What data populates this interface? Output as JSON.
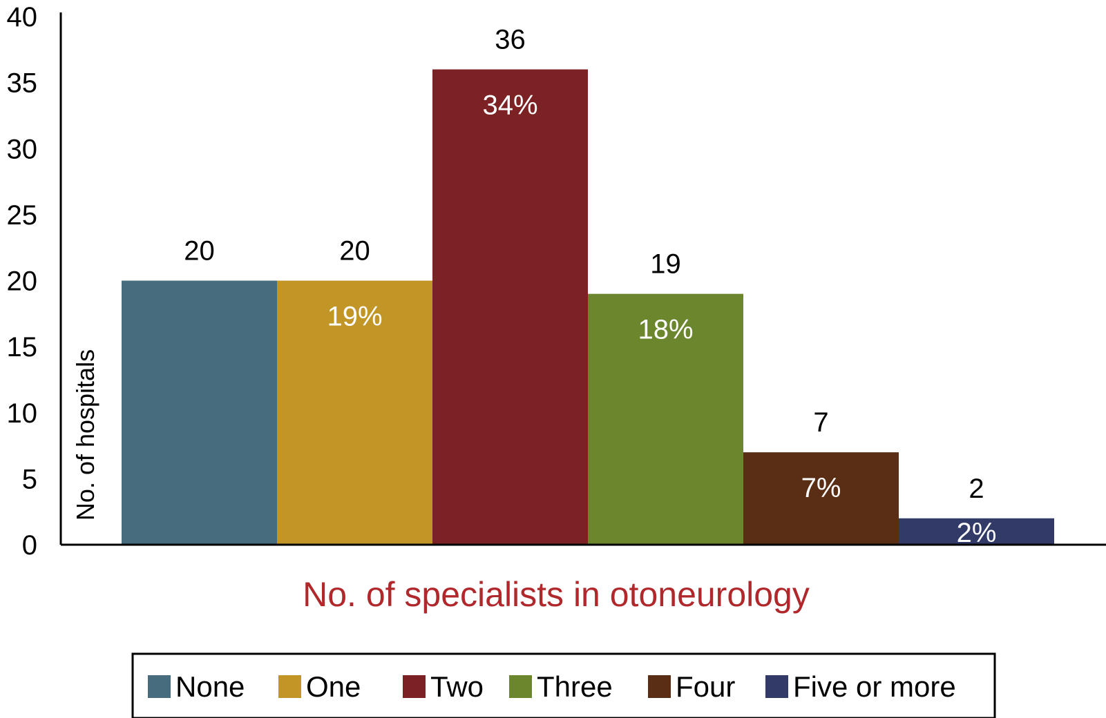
{
  "chart_data": {
    "type": "bar",
    "categories": [
      "None",
      "One",
      "Two",
      "Three",
      "Four",
      "Five or more"
    ],
    "values": [
      20,
      20,
      36,
      19,
      7,
      2
    ],
    "percent_labels": [
      "",
      "19%",
      "34%",
      "18%",
      "7%",
      "2%"
    ],
    "colors": [
      "#466c7d",
      "#c29527",
      "#7c2225",
      "#6c862d",
      "#5a2e14",
      "#323a68"
    ],
    "xlabel": "No. of specialists in otoneurology",
    "xlabel_color": "#b0282b",
    "ylabel": "No. of hospitals",
    "ylim": [
      0,
      40
    ],
    "yticks": [
      "0",
      "5",
      "10",
      "15",
      "20",
      "25",
      "30",
      "35",
      "40"
    ],
    "grid": false,
    "legend_placement": "bottom",
    "legend": [
      "None",
      "One",
      "Two",
      "Three",
      "Four",
      "Five or more"
    ]
  }
}
